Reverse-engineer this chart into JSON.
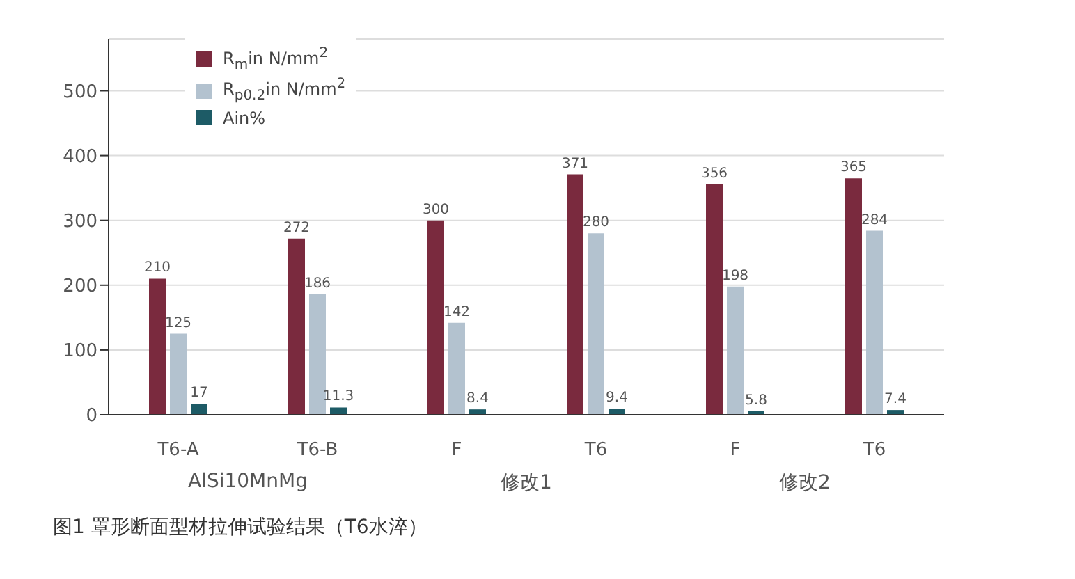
{
  "chart_data": {
    "type": "bar",
    "title": "图1 罩形断面型材拉伸试验结果（T6水淬）",
    "categories": [
      "T6-A",
      "T6-B",
      "F",
      "T6",
      "F",
      "T6"
    ],
    "series": [
      {
        "name": "R$_{m}$in N/mm$^{2}$",
        "color": "#7a2a3e",
        "values": [
          210,
          272,
          300,
          371,
          356,
          365
        ]
      },
      {
        "name": "R$_{p0.2}$in N/mm$^{2}$",
        "color": "#b3c2cf",
        "values": [
          125,
          186,
          142,
          280,
          198,
          284
        ]
      },
      {
        "name": "Ain%",
        "color": "#1d5b66",
        "values": [
          17,
          11.3,
          8.4,
          9.4,
          5.8,
          7.4
        ]
      }
    ],
    "ylim": [
      0,
      580
    ],
    "yticks": [
      0,
      100,
      200,
      300,
      400,
      500
    ],
    "grid": "y",
    "legend": "top left",
    "data_labels": true,
    "annotations": [
      "AlSi10MnMg",
      "修改1",
      "修改2"
    ]
  }
}
